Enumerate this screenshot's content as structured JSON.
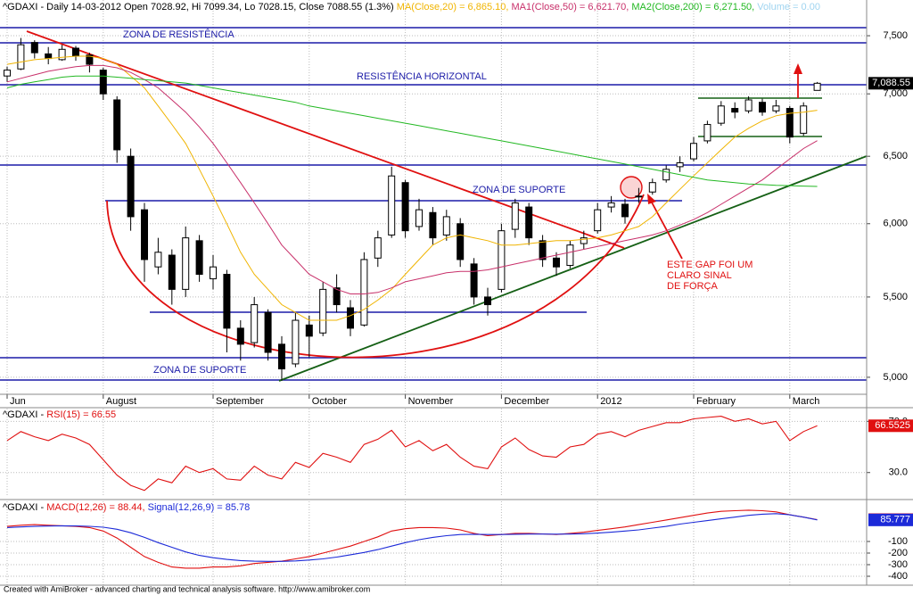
{
  "chart_data": [
    {
      "type": "candlestick",
      "title": "^GDAXI - Daily 14-03-2012 Open 7028.92, Hi 7099.34, Lo 7028.15, Close 7088.55 (1.3%)",
      "categories": [
        "Jun",
        null,
        null,
        null,
        null,
        null,
        null,
        "August",
        null,
        null,
        null,
        null,
        null,
        null,
        null,
        "September",
        null,
        null,
        null,
        null,
        null,
        null,
        "October",
        null,
        null,
        null,
        null,
        null,
        null,
        "November",
        null,
        null,
        null,
        null,
        null,
        null,
        "December",
        null,
        null,
        null,
        null,
        null,
        null,
        "2012",
        null,
        null,
        null,
        null,
        null,
        null,
        "February",
        null,
        null,
        null,
        null,
        null,
        null,
        "March",
        null,
        null
      ],
      "ohlc": [
        [
          7150,
          7230,
          7100,
          7200
        ],
        [
          7210,
          7480,
          7200,
          7420
        ],
        [
          7440,
          7460,
          7300,
          7350
        ],
        [
          7340,
          7400,
          7250,
          7300
        ],
        [
          7290,
          7420,
          7280,
          7380
        ],
        [
          7390,
          7410,
          7280,
          7320
        ],
        [
          7330,
          7350,
          7180,
          7250
        ],
        [
          7200,
          7220,
          6950,
          7000
        ],
        [
          6950,
          6980,
          6450,
          6550
        ],
        [
          6500,
          6560,
          5950,
          6050
        ],
        [
          6100,
          6150,
          5600,
          5750
        ],
        [
          5700,
          5900,
          5650,
          5800
        ],
        [
          5780,
          5820,
          5450,
          5550
        ],
        [
          5550,
          5980,
          5500,
          5900
        ],
        [
          5880,
          5920,
          5600,
          5650
        ],
        [
          5620,
          5780,
          5550,
          5700
        ],
        [
          5650,
          5680,
          5150,
          5300
        ],
        [
          5300,
          5350,
          5100,
          5200
        ],
        [
          5210,
          5500,
          5180,
          5450
        ],
        [
          5400,
          5420,
          5100,
          5150
        ],
        [
          5200,
          5250,
          4980,
          5050
        ],
        [
          5080,
          5400,
          5060,
          5350
        ],
        [
          5320,
          5380,
          5120,
          5250
        ],
        [
          5270,
          5600,
          5250,
          5550
        ],
        [
          5560,
          5650,
          5400,
          5450
        ],
        [
          5430,
          5480,
          5250,
          5300
        ],
        [
          5320,
          5800,
          5310,
          5750
        ],
        [
          5760,
          5950,
          5700,
          5900
        ],
        [
          5920,
          6420,
          5900,
          6350
        ],
        [
          6300,
          6320,
          5900,
          5950
        ],
        [
          5980,
          6180,
          5950,
          6100
        ],
        [
          6080,
          6120,
          5850,
          5900
        ],
        [
          5920,
          6100,
          5880,
          6050
        ],
        [
          6000,
          6040,
          5700,
          5750
        ],
        [
          5720,
          5760,
          5450,
          5500
        ],
        [
          5500,
          5560,
          5380,
          5450
        ],
        [
          5550,
          6000,
          5530,
          5950
        ],
        [
          5960,
          6180,
          5900,
          6150
        ],
        [
          6120,
          6150,
          5850,
          5900
        ],
        [
          5880,
          5920,
          5700,
          5750
        ],
        [
          5760,
          5800,
          5640,
          5700
        ],
        [
          5710,
          5880,
          5690,
          5850
        ],
        [
          5860,
          5950,
          5820,
          5900
        ],
        [
          5950,
          6150,
          5930,
          6100
        ],
        [
          6120,
          6200,
          6080,
          6150
        ],
        [
          6140,
          6180,
          6000,
          6050
        ],
        [
          6200,
          6260,
          6150,
          6200
        ],
        [
          6230,
          6330,
          6210,
          6300
        ],
        [
          6320,
          6430,
          6300,
          6400
        ],
        [
          6420,
          6500,
          6380,
          6450
        ],
        [
          6480,
          6650,
          6460,
          6600
        ],
        [
          6620,
          6780,
          6600,
          6750
        ],
        [
          6760,
          6940,
          6740,
          6900
        ],
        [
          6880,
          6930,
          6800,
          6850
        ],
        [
          6860,
          6980,
          6840,
          6950
        ],
        [
          6930,
          6960,
          6820,
          6850
        ],
        [
          6860,
          6950,
          6840,
          6900
        ],
        [
          6880,
          6900,
          6600,
          6650
        ],
        [
          6680,
          6930,
          6660,
          6900
        ],
        [
          7028.92,
          7099.34,
          7028.15,
          7088.55
        ]
      ],
      "last_value_label": "7,088.55",
      "series": [
        {
          "name": "MA(Close,20) = 6,865.10,",
          "color": "#f0b400",
          "values": [
            7250,
            7270,
            7290,
            7300,
            7310,
            7320,
            7320,
            7300,
            7250,
            7150,
            7050,
            6900,
            6750,
            6600,
            6400,
            6200,
            6000,
            5800,
            5650,
            5550,
            5450,
            5400,
            5350,
            5350,
            5350,
            5380,
            5420,
            5480,
            5550,
            5650,
            5750,
            5850,
            5900,
            5920,
            5900,
            5880,
            5850,
            5850,
            5860,
            5870,
            5880,
            5880,
            5890,
            5900,
            5920,
            5950,
            5980,
            6050,
            6150,
            6250,
            6350,
            6450,
            6550,
            6650,
            6720,
            6780,
            6820,
            6840,
            6850,
            6865.1
          ]
        },
        {
          "name": "MA1(Close,50) = 6,621.70,",
          "color": "#c8306a",
          "values": [
            7100,
            7130,
            7160,
            7190,
            7210,
            7230,
            7240,
            7240,
            7220,
            7180,
            7120,
            7050,
            6950,
            6850,
            6730,
            6600,
            6450,
            6300,
            6150,
            6000,
            5850,
            5750,
            5650,
            5600,
            5550,
            5520,
            5520,
            5530,
            5560,
            5600,
            5620,
            5640,
            5660,
            5670,
            5670,
            5680,
            5700,
            5720,
            5740,
            5760,
            5780,
            5800,
            5820,
            5840,
            5860,
            5880,
            5900,
            5920,
            5950,
            5990,
            6030,
            6080,
            6140,
            6200,
            6260,
            6320,
            6400,
            6480,
            6560,
            6621.7
          ]
        },
        {
          "name": "MA2(Close,200) = 6,271.50,",
          "color": "#22b822",
          "values": [
            7050,
            7080,
            7100,
            7120,
            7140,
            7150,
            7150,
            7150,
            7140,
            7130,
            7120,
            7110,
            7100,
            7090,
            7070,
            7050,
            7030,
            7010,
            6990,
            6970,
            6950,
            6930,
            6900,
            6880,
            6860,
            6840,
            6820,
            6800,
            6780,
            6760,
            6740,
            6720,
            6700,
            6680,
            6660,
            6640,
            6620,
            6600,
            6580,
            6560,
            6540,
            6520,
            6500,
            6480,
            6460,
            6440,
            6420,
            6400,
            6380,
            6360,
            6340,
            6320,
            6310,
            6300,
            6290,
            6285,
            6280,
            6277,
            6274,
            6271.5
          ]
        }
      ],
      "volume_label": "Volume = 0.00",
      "volume_color": "#9fd4f0",
      "log_scale": true,
      "ylim": [
        4900,
        7825
      ],
      "yticks": [
        {
          "value": 5000,
          "label": "5,000"
        },
        {
          "value": 5500,
          "label": "5,500"
        },
        {
          "value": 6000,
          "label": "6,000"
        },
        {
          "value": 6500,
          "label": "6,500"
        },
        {
          "value": 7000,
          "label": "7,000"
        },
        {
          "value": 7500,
          "label": "7,500"
        }
      ],
      "grid": true,
      "annotations": [
        "ZONA DE RESISTÊNCIA",
        "RESISTÊNCIA HORIZONTAL",
        "ZONA DE SUPORTE",
        "ZONA DE SUPORTE",
        "ESTE GAP FOI UM",
        "CLARO SINAL",
        "DE FORÇA"
      ]
    },
    {
      "type": "line",
      "title": "^GDAXI -",
      "series": [
        {
          "name": "RSI(15) = 66.55",
          "color": "#e01010",
          "values": [
            55,
            62,
            58,
            55,
            60,
            57,
            52,
            40,
            28,
            20,
            16,
            25,
            22,
            35,
            30,
            33,
            25,
            24,
            35,
            28,
            25,
            38,
            34,
            45,
            42,
            38,
            52,
            56,
            63,
            50,
            55,
            47,
            52,
            42,
            35,
            33,
            50,
            57,
            48,
            43,
            42,
            50,
            52,
            60,
            62,
            58,
            63,
            66,
            69,
            69,
            72,
            73,
            74,
            70,
            72,
            68,
            70,
            55,
            62,
            66.5525
          ],
          "last_value_label": "66.5525"
        }
      ],
      "ylim": [
        11,
        80
      ],
      "yticks": [
        {
          "value": 70,
          "label": "70.0"
        },
        {
          "value": 30,
          "label": "30.0"
        }
      ],
      "grid": true
    },
    {
      "type": "line",
      "title": "^GDAXI -",
      "series": [
        {
          "name": "MACD(12,26) = 88.44,",
          "color": "#e01010",
          "values": [
            30,
            40,
            45,
            40,
            35,
            30,
            20,
            -10,
            -70,
            -150,
            -230,
            -280,
            -320,
            -330,
            -330,
            -320,
            -320,
            -310,
            -290,
            -280,
            -270,
            -250,
            -230,
            -200,
            -170,
            -140,
            -100,
            -60,
            -10,
            10,
            20,
            20,
            15,
            0,
            -30,
            -50,
            -40,
            -30,
            -30,
            -35,
            -40,
            -30,
            -20,
            -5,
            10,
            25,
            45,
            65,
            85,
            105,
            125,
            145,
            160,
            165,
            170,
            165,
            155,
            130,
            110,
            88.4368
          ],
          "last_value_label": "88.4368"
        },
        {
          "name": "Signal(12,26,9) = 85.78",
          "color": "#1c2ad8",
          "values": [
            20,
            25,
            30,
            33,
            35,
            34,
            31,
            23,
            5,
            -25,
            -65,
            -110,
            -150,
            -190,
            -220,
            -240,
            -255,
            -265,
            -270,
            -272,
            -272,
            -268,
            -260,
            -250,
            -235,
            -215,
            -195,
            -170,
            -140,
            -110,
            -85,
            -65,
            -50,
            -40,
            -38,
            -40,
            -40,
            -38,
            -36,
            -36,
            -37,
            -36,
            -33,
            -28,
            -20,
            -10,
            0,
            15,
            30,
            50,
            65,
            80,
            95,
            110,
            125,
            135,
            140,
            130,
            110,
            85.777
          ],
          "last_value_label": "85.777"
        }
      ],
      "ylim": [
        -477,
        246
      ],
      "yticks": [
        -400,
        -300,
        -200,
        -100
      ],
      "grid": true
    }
  ],
  "footer": "Created with AmiBroker - advanced charting and technical analysis software. http://www.amibroker.com"
}
